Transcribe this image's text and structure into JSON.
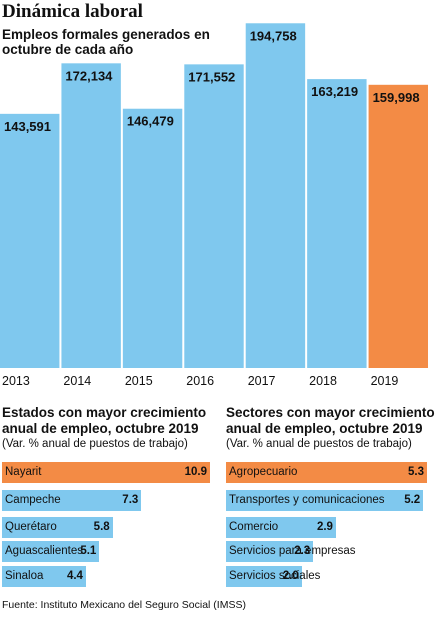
{
  "title": "Dinámica laboral",
  "subtitle": "Empleos formales generados en octubre de cada año",
  "colors": {
    "blue": "#7fc8ee",
    "orange": "#f38b45",
    "divider": "#ffffff",
    "text": "#111111"
  },
  "chart_data": [
    {
      "type": "bar",
      "categories": [
        "2013",
        "2014",
        "2015",
        "2016",
        "2017",
        "2018",
        "2019"
      ],
      "values": [
        143591,
        172134,
        146479,
        171552,
        194758,
        163219,
        159998
      ],
      "value_labels": [
        "143,591",
        "172,134",
        "146,479",
        "171,552",
        "194,758",
        "163,219",
        "159,998"
      ],
      "highlight_index": 6,
      "ylim": [
        0,
        200000
      ],
      "title": "Empleos formales generados en octubre de cada año"
    },
    {
      "type": "bar",
      "orientation": "horizontal",
      "title": "Estados con mayor crecimiento anual de empleo, octubre 2019",
      "subtitle": "(Var. % anual de puestos de trabajo)",
      "categories": [
        "Nayarit",
        "Campeche",
        "Querétaro",
        "Aguascalientes",
        "Sinaloa"
      ],
      "values": [
        10.9,
        7.3,
        5.8,
        5.1,
        4.4
      ],
      "value_labels": [
        "10.9",
        "7.3",
        "5.8",
        "5.1",
        "4.4"
      ],
      "highlight_index": 0
    },
    {
      "type": "bar",
      "orientation": "horizontal",
      "title": "Sectores con mayor crecimiento anual de empleo, octubre 2019",
      "subtitle": "(Var. % anual de puestos de trabajo)",
      "categories": [
        "Agropecuario",
        "Transportes y comunicaciones",
        "Comercio",
        "Servicios para empresas",
        "Servicios sociales"
      ],
      "values": [
        5.3,
        5.2,
        2.9,
        2.3,
        2.0
      ],
      "value_labels": [
        "5.3",
        "5.2",
        "2.9",
        "2.3",
        "2.0"
      ],
      "highlight_index": 0
    }
  ],
  "source": "Fuente: Instituto Mexicano del Seguro Social (IMSS)"
}
